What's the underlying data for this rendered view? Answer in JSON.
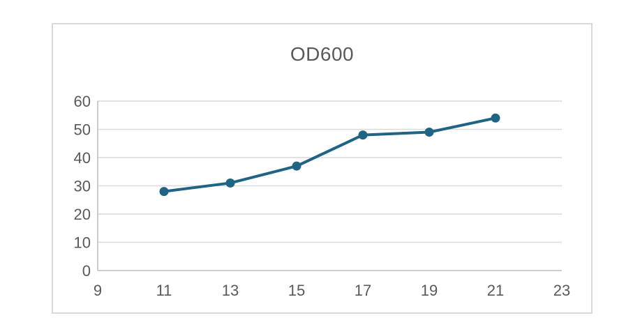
{
  "chart_data": {
    "type": "line",
    "title": "OD600",
    "x": [
      11,
      13,
      15,
      17,
      19,
      21
    ],
    "series": [
      {
        "name": "OD600",
        "values": [
          28,
          31,
          37,
          48,
          49,
          54
        ]
      }
    ],
    "xlabel": "",
    "ylabel": "",
    "xlim": [
      9,
      23
    ],
    "ylim": [
      0,
      60
    ],
    "x_ticks": [
      9,
      11,
      13,
      15,
      17,
      19,
      21,
      23
    ],
    "y_ticks": [
      0,
      10,
      20,
      30,
      40,
      50,
      60
    ],
    "grid": "horizontal",
    "legend_position": "none",
    "line_color": "#1F6385",
    "marker": "circle",
    "marker_radius": 6.5,
    "line_width": 4,
    "title_color": "#595959",
    "tick_label_color": "#595959",
    "gridline_color": "#D9D9D9",
    "axis_line_color": "#BFBFBF",
    "chart_border_color": "#D9D9D9",
    "background_color": "#FFFFFF"
  }
}
